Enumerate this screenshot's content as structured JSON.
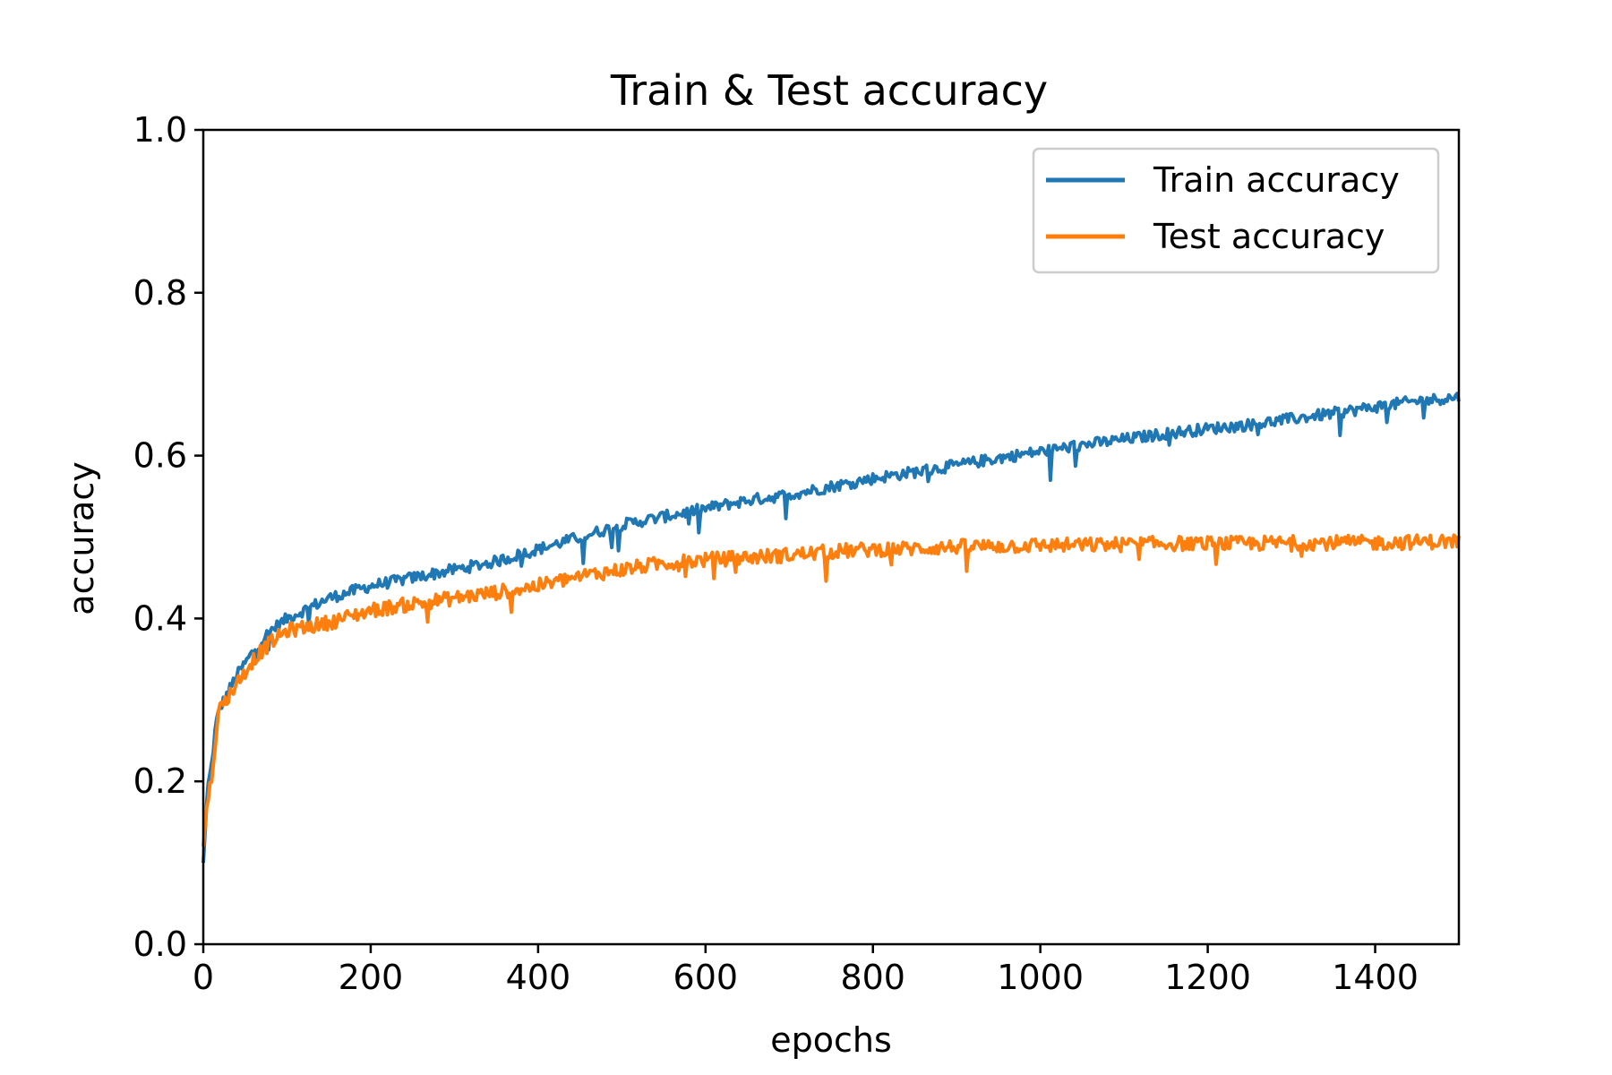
{
  "chart_data": {
    "type": "line",
    "title": "Train & Test accuracy",
    "xlabel": "epochs",
    "ylabel": "accuracy",
    "xlim": [
      0,
      1500
    ],
    "ylim": [
      0.0,
      1.0
    ],
    "xticks": [
      0,
      200,
      400,
      600,
      800,
      1000,
      1200,
      1400
    ],
    "yticks": [
      0.0,
      0.2,
      0.4,
      0.6,
      0.8,
      1.0
    ],
    "xtick_labels": [
      "0",
      "200",
      "400",
      "600",
      "800",
      "1000",
      "1200",
      "1400"
    ],
    "ytick_labels": [
      "0.0",
      "0.2",
      "0.4",
      "0.6",
      "0.8",
      "1.0"
    ],
    "grid": false,
    "legend_position": "top-right",
    "series": [
      {
        "name": "Train accuracy",
        "color": "#1f77b4",
        "x": [
          0,
          5,
          10,
          15,
          20,
          30,
          40,
          50,
          60,
          80,
          100,
          150,
          200,
          250,
          300,
          350,
          400,
          450,
          500,
          550,
          600,
          650,
          700,
          750,
          800,
          850,
          900,
          950,
          1000,
          1050,
          1100,
          1150,
          1200,
          1250,
          1300,
          1350,
          1400,
          1450,
          1500
        ],
        "y": [
          0.1,
          0.19,
          0.22,
          0.27,
          0.29,
          0.31,
          0.33,
          0.345,
          0.36,
          0.385,
          0.4,
          0.425,
          0.44,
          0.45,
          0.46,
          0.47,
          0.485,
          0.5,
          0.515,
          0.525,
          0.535,
          0.545,
          0.552,
          0.562,
          0.572,
          0.58,
          0.588,
          0.597,
          0.605,
          0.613,
          0.62,
          0.627,
          0.633,
          0.638,
          0.645,
          0.652,
          0.66,
          0.667,
          0.672
        ]
      },
      {
        "name": "Test accuracy",
        "color": "#ff7f0e",
        "x": [
          0,
          5,
          10,
          15,
          20,
          30,
          40,
          50,
          60,
          80,
          100,
          150,
          200,
          250,
          300,
          350,
          400,
          450,
          500,
          550,
          600,
          650,
          700,
          750,
          800,
          850,
          900,
          950,
          1000,
          1050,
          1100,
          1150,
          1200,
          1250,
          1300,
          1350,
          1400,
          1450,
          1500
        ],
        "y": [
          0.12,
          0.18,
          0.2,
          0.26,
          0.29,
          0.305,
          0.32,
          0.335,
          0.35,
          0.37,
          0.385,
          0.395,
          0.41,
          0.418,
          0.425,
          0.432,
          0.44,
          0.452,
          0.46,
          0.468,
          0.472,
          0.475,
          0.478,
          0.482,
          0.485,
          0.486,
          0.488,
          0.489,
          0.49,
          0.49,
          0.491,
          0.492,
          0.492,
          0.492,
          0.493,
          0.493,
          0.493,
          0.494,
          0.495
        ]
      }
    ]
  }
}
